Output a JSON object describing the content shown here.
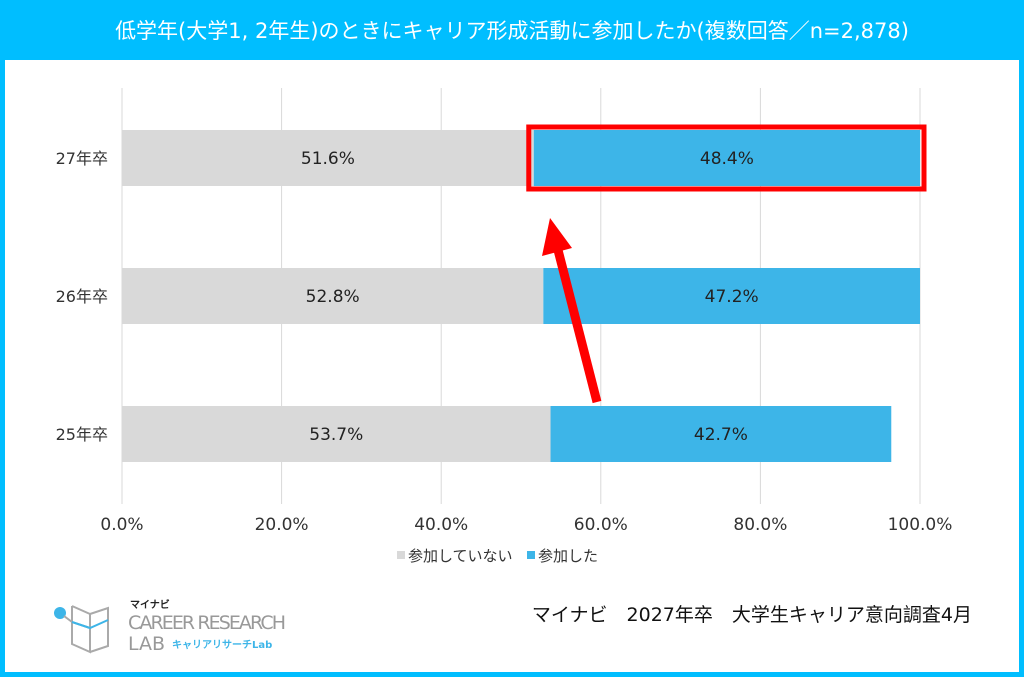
{
  "title": "低学年(大学1, 2年生)のときにキャリア形成活動に参加したか(複数回答／n=2,878)",
  "source": "マイナビ　2027年卒　大学生キャリア意向調査4月",
  "logo": {
    "top": "マイナビ",
    "main": "CAREER RESEARCH",
    "sub": "LAB",
    "tag": "キャリアリサーチLab"
  },
  "colors": {
    "not_participated": "#D9D9D9",
    "participated": "#3DB5E8",
    "highlight": "#FF0000",
    "frame": "#00BEFF"
  },
  "chart_data": {
    "type": "bar",
    "orientation": "horizontal",
    "stacked": true,
    "categories": [
      "27年卒",
      "26年卒",
      "25年卒"
    ],
    "series": [
      {
        "name": "参加していない",
        "values": [
          51.6,
          52.8,
          53.7
        ],
        "labels": [
          "51.6%",
          "52.8%",
          "53.7%"
        ]
      },
      {
        "name": "参加した",
        "values": [
          48.4,
          47.2,
          42.7
        ],
        "labels": [
          "48.4%",
          "47.2%",
          "42.7%"
        ]
      }
    ],
    "xlim": [
      0,
      100
    ],
    "xticks": [
      "0.0%",
      "20.0%",
      "40.0%",
      "60.0%",
      "80.0%",
      "100.0%"
    ],
    "grid": true,
    "legend": "bottom",
    "annotations": [
      "highlight box on 27年卒 参加した",
      "red arrow from 26年卒 toward 27年卒"
    ]
  }
}
